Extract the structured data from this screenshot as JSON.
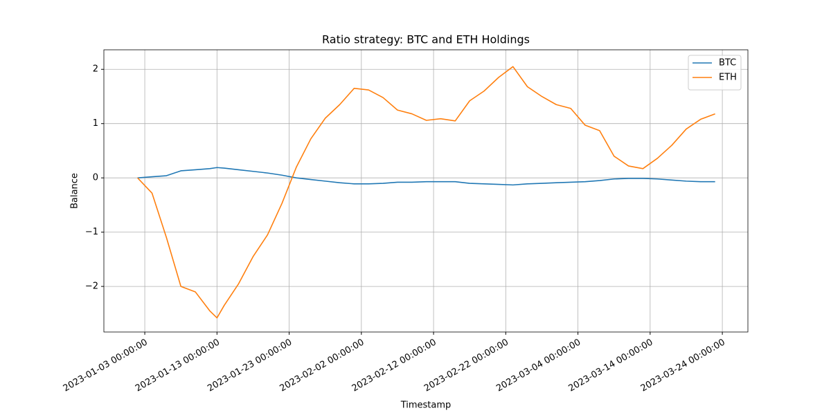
{
  "chart_data": {
    "type": "line",
    "title": "Ratio strategy: BTC and ETH Holdings",
    "x_label": "Timestamp",
    "y_label": "Balance",
    "x": [
      "2023-01-02 00:00:00",
      "2023-01-04 00:00:00",
      "2023-01-06 00:00:00",
      "2023-01-08 00:00:00",
      "2023-01-10 00:00:00",
      "2023-01-12 00:00:00",
      "2023-01-13 00:00:00",
      "2023-01-14 00:00:00",
      "2023-01-16 00:00:00",
      "2023-01-18 00:00:00",
      "2023-01-20 00:00:00",
      "2023-01-22 00:00:00",
      "2023-01-24 00:00:00",
      "2023-01-26 00:00:00",
      "2023-01-28 00:00:00",
      "2023-01-30 00:00:00",
      "2023-02-01 00:00:00",
      "2023-02-03 00:00:00",
      "2023-02-05 00:00:00",
      "2023-02-07 00:00:00",
      "2023-02-09 00:00:00",
      "2023-02-11 00:00:00",
      "2023-02-13 00:00:00",
      "2023-02-15 00:00:00",
      "2023-02-17 00:00:00",
      "2023-02-19 00:00:00",
      "2023-02-21 00:00:00",
      "2023-02-23 00:00:00",
      "2023-02-25 00:00:00",
      "2023-02-27 00:00:00",
      "2023-03-01 00:00:00",
      "2023-03-03 00:00:00",
      "2023-03-05 00:00:00",
      "2023-03-07 00:00:00",
      "2023-03-09 00:00:00",
      "2023-03-11 00:00:00",
      "2023-03-13 00:00:00",
      "2023-03-15 00:00:00",
      "2023-03-17 00:00:00",
      "2023-03-19 00:00:00",
      "2023-03-21 00:00:00",
      "2023-03-23 00:00:00"
    ],
    "series": [
      {
        "name": "BTC",
        "color": "#1f77b4",
        "values": [
          0.0,
          0.02,
          0.04,
          0.13,
          0.15,
          0.17,
          0.19,
          0.18,
          0.15,
          0.12,
          0.09,
          0.05,
          0.0,
          -0.03,
          -0.06,
          -0.09,
          -0.11,
          -0.11,
          -0.1,
          -0.08,
          -0.08,
          -0.07,
          -0.07,
          -0.07,
          -0.1,
          -0.11,
          -0.12,
          -0.13,
          -0.11,
          -0.1,
          -0.09,
          -0.08,
          -0.07,
          -0.05,
          -0.02,
          -0.01,
          -0.01,
          -0.02,
          -0.04,
          -0.06,
          -0.07,
          -0.07
        ]
      },
      {
        "name": "ETH",
        "color": "#ff7f0e",
        "values": [
          0.0,
          -0.28,
          -1.1,
          -2.0,
          -2.1,
          -2.45,
          -2.58,
          -2.35,
          -1.95,
          -1.45,
          -1.05,
          -0.47,
          0.2,
          0.72,
          1.1,
          1.35,
          1.65,
          1.62,
          1.48,
          1.25,
          1.18,
          1.06,
          1.09,
          1.05,
          1.42,
          1.6,
          1.85,
          2.05,
          1.68,
          1.5,
          1.35,
          1.28,
          0.97,
          0.87,
          0.4,
          0.22,
          0.17,
          0.36,
          0.6,
          0.9,
          1.08,
          1.18
        ]
      }
    ],
    "xlim": [
      "2022-12-28 08:00:00",
      "2023-03-27 13:00:00"
    ],
    "xticks": [
      "2023-01-03 00:00:00",
      "2023-01-13 00:00:00",
      "2023-01-23 00:00:00",
      "2023-02-02 00:00:00",
      "2023-02-12 00:00:00",
      "2023-02-22 00:00:00",
      "2023-03-04 00:00:00",
      "2023-03-14 00:00:00",
      "2023-03-24 00:00:00"
    ],
    "ylim": [
      -2.84,
      2.36
    ],
    "yticks": [
      {
        "value": -2,
        "label": "−2"
      },
      {
        "value": -1,
        "label": "−1"
      },
      0,
      1,
      2
    ],
    "grid": true,
    "legend": "upper right"
  }
}
